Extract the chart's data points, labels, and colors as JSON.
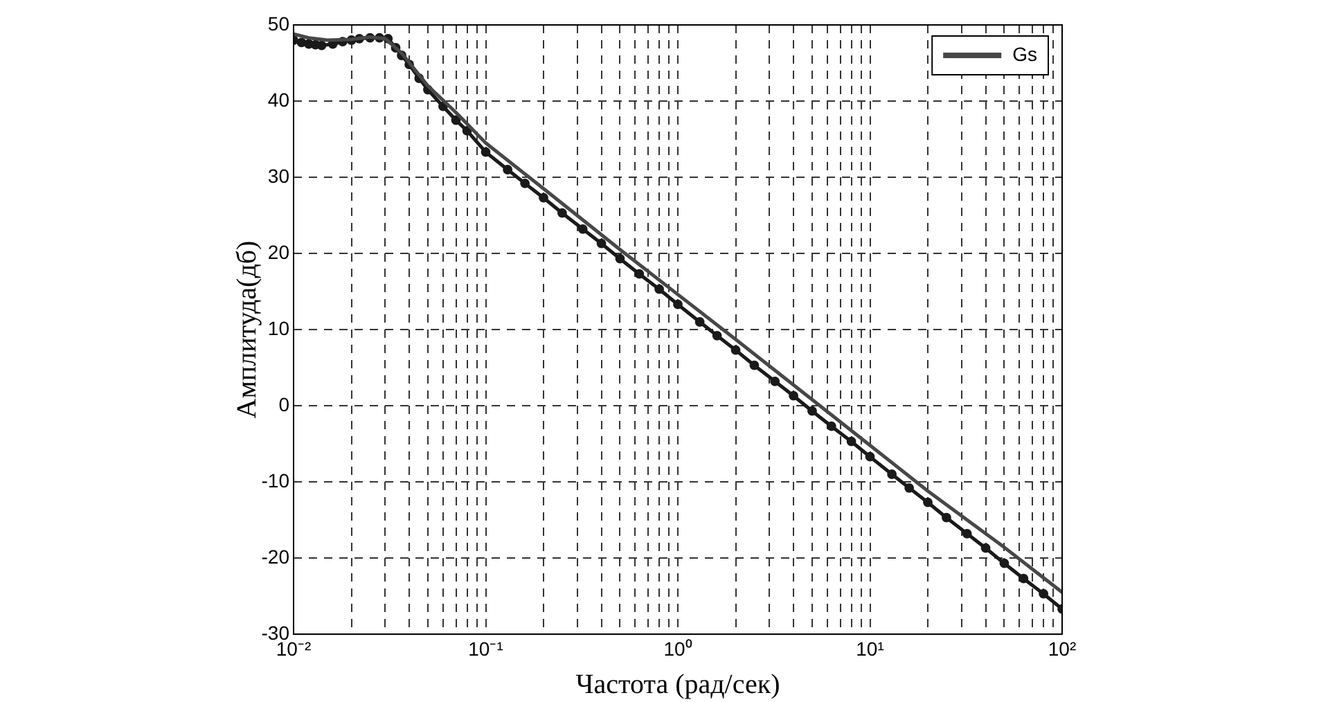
{
  "chart_data": {
    "type": "line",
    "xlabel": "Частота (рад/сек)",
    "ylabel": "Амплитуда(дб)",
    "log": "x",
    "xlim": [
      0.01,
      100
    ],
    "ylim": [
      -30,
      50
    ],
    "xticks": [
      {
        "value": 0.01,
        "label": "10⁻²"
      },
      {
        "value": 0.02,
        "label": null
      },
      {
        "value": 0.03,
        "label": null
      },
      {
        "value": 0.04,
        "label": null
      },
      {
        "value": 0.05,
        "label": null
      },
      {
        "value": 0.06,
        "label": null
      },
      {
        "value": 0.07,
        "label": null
      },
      {
        "value": 0.08,
        "label": null
      },
      {
        "value": 0.09,
        "label": null
      },
      {
        "value": 0.1,
        "label": "10⁻¹"
      },
      {
        "value": 0.2,
        "label": null
      },
      {
        "value": 0.3,
        "label": null
      },
      {
        "value": 0.4,
        "label": null
      },
      {
        "value": 0.5,
        "label": null
      },
      {
        "value": 0.6,
        "label": null
      },
      {
        "value": 0.7,
        "label": null
      },
      {
        "value": 0.8,
        "label": null
      },
      {
        "value": 0.9,
        "label": null
      },
      {
        "value": 1,
        "label": "10⁰"
      },
      {
        "value": 2,
        "label": null
      },
      {
        "value": 3,
        "label": null
      },
      {
        "value": 4,
        "label": null
      },
      {
        "value": 5,
        "label": null
      },
      {
        "value": 6,
        "label": null
      },
      {
        "value": 7,
        "label": null
      },
      {
        "value": 8,
        "label": null
      },
      {
        "value": 9,
        "label": null
      },
      {
        "value": 10,
        "label": "10¹"
      },
      {
        "value": 20,
        "label": null
      },
      {
        "value": 30,
        "label": null
      },
      {
        "value": 40,
        "label": null
      },
      {
        "value": 50,
        "label": null
      },
      {
        "value": 60,
        "label": null
      },
      {
        "value": 70,
        "label": null
      },
      {
        "value": 80,
        "label": null
      },
      {
        "value": 90,
        "label": null
      },
      {
        "value": 100,
        "label": "10²"
      }
    ],
    "yticks": [
      -30,
      -20,
      -10,
      0,
      10,
      20,
      30,
      40,
      50
    ],
    "grid": true,
    "legend": "top right",
    "series": [
      {
        "name": "Gs",
        "color": "#474747",
        "marker": "none",
        "x": [
          0.01,
          0.012,
          0.015,
          0.02,
          0.025,
          0.03,
          0.0365,
          0.05,
          0.07,
          0.1,
          0.2,
          0.5,
          1,
          2,
          5,
          10,
          20,
          50,
          100
        ],
        "values": [
          48.8,
          48.3,
          48,
          48.1,
          48.4,
          48.2,
          46.3,
          42,
          38.5,
          34.5,
          28.5,
          20.5,
          14.6,
          8.7,
          0.8,
          -5.2,
          -11.2,
          -18.6,
          -24.5
        ]
      },
      {
        "color": "#1a1a1a",
        "marker": "circle",
        "x": [
          0.01,
          0.011,
          0.012,
          0.013,
          0.014,
          0.016,
          0.018,
          0.02,
          0.022,
          0.025,
          0.028,
          0.031,
          0.034,
          0.0365,
          0.04,
          0.045,
          0.05,
          0.06,
          0.07,
          0.08,
          0.1,
          0.13,
          0.16,
          0.2,
          0.25,
          0.32,
          0.4,
          0.5,
          0.63,
          0.8,
          1,
          1.3,
          1.6,
          2,
          2.5,
          3.2,
          4,
          5,
          6.3,
          8,
          10,
          13,
          16,
          20,
          25,
          32,
          40,
          50,
          63,
          80,
          100
        ],
        "values": [
          48,
          47.7,
          47.5,
          47.4,
          47.3,
          47.5,
          47.8,
          48,
          48.2,
          48.3,
          48.3,
          48.2,
          47,
          46,
          44.8,
          43,
          41.5,
          39.3,
          37.5,
          36.1,
          33.3,
          31.0,
          29.2,
          27.3,
          25.3,
          23.2,
          21.3,
          19.3,
          17.3,
          15.3,
          13.3,
          11.0,
          9.2,
          7.3,
          5.3,
          3.2,
          1.3,
          -0.7,
          -2.7,
          -4.7,
          -6.7,
          -9.0,
          -10.8,
          -12.7,
          -14.7,
          -16.8,
          -18.7,
          -20.7,
          -22.7,
          -24.7,
          -26.7
        ]
      }
    ]
  }
}
